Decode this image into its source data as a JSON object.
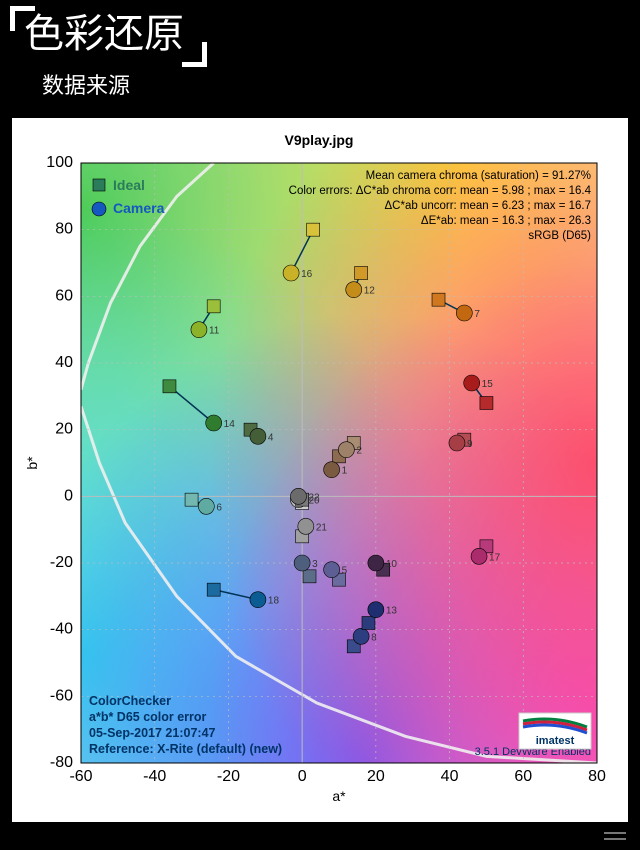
{
  "header": {
    "title": "色彩还原",
    "subtitle": "数据来源"
  },
  "chart": {
    "type": "scatter-vector",
    "title": "V9play.jpg",
    "xlabel": "a*",
    "ylabel": "b*",
    "xlim": [
      -60,
      80
    ],
    "ylim": [
      -80,
      100
    ],
    "tick_step": 20,
    "plot_bg_gradient": true,
    "legend": {
      "ideal": {
        "label": "Ideal",
        "color": "#2a7c5a",
        "marker": "square"
      },
      "camera": {
        "label": "Camera",
        "color": "#1558c0",
        "marker": "circle"
      }
    },
    "info_lines": [
      "Mean camera chroma (saturation) = 91.27%",
      "Color errors: ΔC*ab chroma corr:  mean = 5.98 ;  max = 16.4",
      "ΔC*ab uncorr:  mean = 6.23 ;  max = 16.7",
      "ΔE*ab:  mean = 16.3 ;  max = 26.3",
      "sRGB (D65)"
    ],
    "bottom_left": [
      "ColorChecker",
      "a*b* D65 color error",
      "05-Sep-2017 21:07:47",
      "Reference: X-Rite (default) (new)"
    ],
    "bottom_right": "3.5.1  DevWare Enabled",
    "logo": "imatest",
    "boundary_curve": [
      [
        -60,
        27
      ],
      [
        -55,
        10
      ],
      [
        -48,
        -8
      ],
      [
        -34,
        -30
      ],
      [
        -18,
        -48
      ],
      [
        4,
        -62
      ],
      [
        28,
        -72
      ],
      [
        50,
        -78
      ],
      [
        80,
        -80
      ]
    ],
    "boundary2": [
      [
        -24,
        100
      ],
      [
        -34,
        90
      ],
      [
        -44,
        75
      ],
      [
        -52,
        58
      ],
      [
        -58,
        40
      ],
      [
        -60,
        32
      ]
    ],
    "points": [
      {
        "n": 1,
        "ideal": [
          10,
          12
        ],
        "cam": [
          8,
          8
        ],
        "ci": "#8c6b50",
        "cc": "#7b5a42"
      },
      {
        "n": 2,
        "ideal": [
          14,
          16
        ],
        "cam": [
          12,
          14
        ],
        "ci": "#a88d73",
        "cc": "#9d8168"
      },
      {
        "n": 3,
        "ideal": [
          2,
          -24
        ],
        "cam": [
          0,
          -20
        ],
        "ci": "#5c6d8a",
        "cc": "#4e5f7d"
      },
      {
        "n": 4,
        "ideal": [
          -14,
          20
        ],
        "cam": [
          -12,
          18
        ],
        "ci": "#4f6b42",
        "cc": "#445e38"
      },
      {
        "n": 5,
        "ideal": [
          10,
          -25
        ],
        "cam": [
          8,
          -22
        ],
        "ci": "#6a6ca0",
        "cc": "#5d5f94"
      },
      {
        "n": 6,
        "ideal": [
          -30,
          -1
        ],
        "cam": [
          -26,
          -3
        ],
        "ci": "#72b8b0",
        "cc": "#5faaa1"
      },
      {
        "n": 7,
        "ideal": [
          37,
          59
        ],
        "cam": [
          44,
          55
        ],
        "ci": "#d07820",
        "cc": "#c26810"
      },
      {
        "n": 8,
        "ideal": [
          14,
          -45
        ],
        "cam": [
          16,
          -42
        ],
        "ci": "#3a4c8c",
        "cc": "#2c3e80"
      },
      {
        "n": 9,
        "ideal": [
          44,
          17
        ],
        "cam": [
          42,
          16
        ],
        "ci": "#b34d54",
        "cc": "#a63e46"
      },
      {
        "n": 10,
        "ideal": [
          22,
          -22
        ],
        "cam": [
          20,
          -20
        ],
        "ci": "#4a2f52",
        "cc": "#3e2545"
      },
      {
        "n": 11,
        "ideal": [
          -24,
          57
        ],
        "cam": [
          -28,
          50
        ],
        "ci": "#9bbf3a",
        "cc": "#8cb22a"
      },
      {
        "n": 12,
        "ideal": [
          16,
          67
        ],
        "cam": [
          14,
          62
        ],
        "ci": "#d19a28",
        "cc": "#c48c18"
      },
      {
        "n": 13,
        "ideal": [
          18,
          -38
        ],
        "cam": [
          20,
          -34
        ],
        "ci": "#2c3b7c",
        "cc": "#1e2e70"
      },
      {
        "n": 14,
        "ideal": [
          -36,
          33
        ],
        "cam": [
          -24,
          22
        ],
        "ci": "#3e8a3e",
        "cc": "#2f7c2f"
      },
      {
        "n": 15,
        "ideal": [
          50,
          28
        ],
        "cam": [
          46,
          34
        ],
        "ci": "#b52a2a",
        "cc": "#a81c1c"
      },
      {
        "n": 16,
        "ideal": [
          3,
          80
        ],
        "cam": [
          -3,
          67
        ],
        "ci": "#d8c23a",
        "cc": "#cab228"
      },
      {
        "n": 17,
        "ideal": [
          50,
          -15
        ],
        "cam": [
          48,
          -18
        ],
        "ci": "#b73a7a",
        "cc": "#aa2c6d"
      },
      {
        "n": 18,
        "ideal": [
          -24,
          -28
        ],
        "cam": [
          -12,
          -31
        ],
        "ci": "#1b6aa0",
        "cc": "#0c5c94"
      },
      {
        "n": 20,
        "ideal": [
          0,
          -2
        ],
        "cam": [
          -1,
          -1
        ],
        "ci": "#cdcdcd",
        "cc": "#bebebe"
      },
      {
        "n": 21,
        "ideal": [
          0,
          -12
        ],
        "cam": [
          1,
          -9
        ],
        "ci": "#a0a0a0",
        "cc": "#919191"
      },
      {
        "n": 22,
        "ideal": [
          0,
          -1
        ],
        "cam": [
          -1,
          0
        ],
        "ci": "#7a7a7a",
        "cc": "#6b6b6b"
      }
    ],
    "colors": {
      "grid": "#bdbdbd",
      "axis": "#000",
      "curve": "#f0f0f0"
    },
    "marker": {
      "square_size": 13,
      "circle_r": 8,
      "line_w": 1.5
    }
  }
}
